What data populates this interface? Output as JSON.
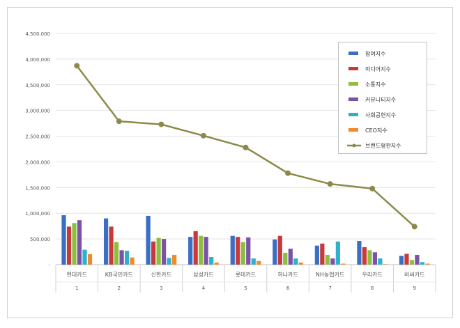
{
  "chart_data": {
    "type": "bar",
    "title": "",
    "xlabel": "",
    "ylabel": "",
    "ylim": [
      0,
      4500000
    ],
    "yticks": [
      "-",
      "500,000",
      "1,000,000",
      "1,500,000",
      "2,000,000",
      "2,500,000",
      "3,000,000",
      "3,500,000",
      "4,000,000",
      "4,500,000"
    ],
    "grid": true,
    "legend_position": "top-right",
    "categories": [
      "현대카드",
      "KB국민카드",
      "신한카드",
      "삼성카드",
      "롯데카드",
      "하나카드",
      "NH농협카드",
      "우리카드",
      "비씨카드"
    ],
    "ranks": [
      "1",
      "2",
      "3",
      "4",
      "5",
      "6",
      "7",
      "8",
      "9"
    ],
    "series": [
      {
        "name": "참여지수",
        "color": "#3a6fc4",
        "values": [
          962000,
          900000,
          950000,
          540000,
          560000,
          490000,
          370000,
          460000,
          170000
        ]
      },
      {
        "name": "미디어지수",
        "color": "#c83a3a",
        "values": [
          740000,
          740000,
          450000,
          650000,
          540000,
          560000,
          410000,
          340000,
          210000
        ]
      },
      {
        "name": "소통지수",
        "color": "#8cbf3f",
        "values": [
          810000,
          440000,
          520000,
          560000,
          440000,
          230000,
          190000,
          280000,
          90000
        ]
      },
      {
        "name": "커뮤니티지수",
        "color": "#7a52a8",
        "values": [
          865000,
          280000,
          500000,
          540000,
          530000,
          310000,
          120000,
          240000,
          190000
        ]
      },
      {
        "name": "사회공헌지수",
        "color": "#2fb1cc",
        "values": [
          290000,
          270000,
          130000,
          150000,
          120000,
          120000,
          450000,
          120000,
          50000
        ]
      },
      {
        "name": "CEO지수",
        "color": "#f08a2c",
        "values": [
          205000,
          140000,
          190000,
          40000,
          70000,
          40000,
          20000,
          10000,
          20000
        ]
      }
    ],
    "line_series": {
      "name": "브랜드평판지수",
      "color": "#8c8a4a",
      "values": [
        3870000,
        2790000,
        2730000,
        2510000,
        2280000,
        1780000,
        1570000,
        1480000,
        740000
      ]
    }
  }
}
